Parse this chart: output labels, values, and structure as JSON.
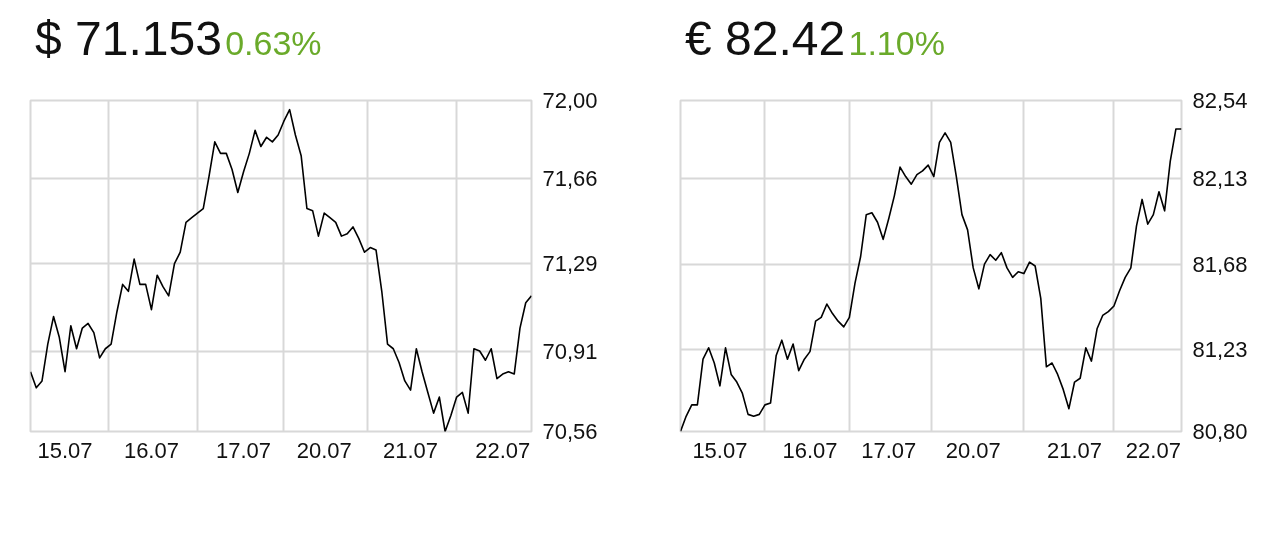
{
  "chart_data": [
    {
      "type": "line",
      "title": "$ 71.153",
      "subtitle": "0.63%",
      "grid": true,
      "marker": "none",
      "categories": [
        null,
        null,
        null,
        null,
        null,
        null,
        "15.07",
        null,
        null,
        null,
        null,
        null,
        null,
        null,
        null,
        null,
        null,
        null,
        null,
        null,
        null,
        "16.07",
        null,
        null,
        null,
        null,
        null,
        null,
        null,
        null,
        null,
        null,
        null,
        null,
        null,
        null,
        null,
        "17.07",
        null,
        null,
        null,
        null,
        null,
        null,
        null,
        null,
        null,
        null,
        null,
        null,
        null,
        "20.07",
        null,
        null,
        null,
        null,
        null,
        null,
        null,
        null,
        null,
        null,
        null,
        null,
        null,
        null,
        "21.07",
        null,
        null,
        null,
        null,
        null,
        null,
        null,
        null,
        null,
        null,
        null,
        null,
        null,
        null,
        null,
        "22.07",
        null,
        null,
        null,
        null,
        null
      ],
      "ylim": [
        70.56,
        72.0
      ],
      "yticks": [
        {
          "value": 70.56,
          "label": "70,56"
        },
        {
          "value": 70.91,
          "label": "70,91"
        },
        {
          "value": 71.29,
          "label": "71,29"
        },
        {
          "value": 71.66,
          "label": "71,66"
        },
        {
          "value": 72.0,
          "label": "72,00"
        }
      ],
      "series": [
        {
          "color": "#000000",
          "values": [
            70.82,
            70.75,
            70.78,
            70.94,
            71.06,
            70.97,
            70.82,
            71.02,
            70.92,
            71.01,
            71.03,
            70.99,
            70.88,
            70.92,
            70.94,
            71.08,
            71.2,
            71.17,
            71.31,
            71.2,
            71.2,
            71.09,
            71.24,
            71.19,
            71.15,
            71.29,
            71.34,
            71.47,
            71.49,
            71.51,
            71.53,
            71.67,
            71.82,
            71.77,
            71.77,
            71.7,
            71.6,
            71.69,
            71.77,
            71.87,
            71.8,
            71.84,
            71.82,
            71.85,
            71.91,
            71.96,
            71.85,
            71.76,
            71.53,
            71.52,
            71.41,
            71.51,
            71.49,
            71.47,
            71.41,
            71.42,
            71.45,
            71.4,
            71.34,
            71.36,
            71.35,
            71.17,
            70.94,
            70.92,
            70.86,
            70.78,
            70.74,
            70.92,
            70.82,
            70.73,
            70.64,
            70.71,
            70.56,
            70.63,
            70.71,
            70.73,
            70.64,
            70.92,
            70.91,
            70.87,
            70.92,
            70.79,
            70.81,
            70.82,
            70.81,
            71.01,
            71.12,
            71.15
          ]
        }
      ]
    },
    {
      "type": "line",
      "title": "€ 82.42",
      "subtitle": "1.10%",
      "grid": true,
      "marker": "none",
      "categories": [
        null,
        null,
        null,
        null,
        null,
        null,
        null,
        "15.07",
        null,
        null,
        null,
        null,
        null,
        null,
        null,
        null,
        null,
        null,
        null,
        null,
        null,
        null,
        null,
        "16.07",
        null,
        null,
        null,
        null,
        null,
        null,
        null,
        null,
        null,
        null,
        null,
        null,
        null,
        "17.07",
        null,
        null,
        null,
        null,
        null,
        null,
        null,
        null,
        null,
        null,
        null,
        null,
        null,
        null,
        "20.07",
        null,
        null,
        null,
        null,
        null,
        null,
        null,
        null,
        null,
        null,
        null,
        null,
        null,
        null,
        null,
        null,
        null,
        "21.07",
        null,
        null,
        null,
        null,
        null,
        null,
        null,
        null,
        null,
        null,
        null,
        null,
        null,
        "22.07",
        null,
        null,
        null,
        null,
        null
      ],
      "ylim": [
        80.8,
        82.54
      ],
      "yticks": [
        {
          "value": 80.8,
          "label": "80,80"
        },
        {
          "value": 81.23,
          "label": "81,23"
        },
        {
          "value": 81.68,
          "label": "81,68"
        },
        {
          "value": 82.13,
          "label": "82,13"
        },
        {
          "value": 82.54,
          "label": "82,54"
        }
      ],
      "series": [
        {
          "color": "#000000",
          "values": [
            80.8,
            80.88,
            80.94,
            80.94,
            81.18,
            81.24,
            81.16,
            81.04,
            81.24,
            81.1,
            81.06,
            81.0,
            80.89,
            80.88,
            80.89,
            80.94,
            80.95,
            81.2,
            81.28,
            81.18,
            81.26,
            81.12,
            81.18,
            81.22,
            81.38,
            81.4,
            81.47,
            81.42,
            81.38,
            81.35,
            81.4,
            81.58,
            81.72,
            81.94,
            81.95,
            81.9,
            81.81,
            81.92,
            82.04,
            82.19,
            82.14,
            82.1,
            82.15,
            82.17,
            82.2,
            82.14,
            82.32,
            82.37,
            82.32,
            82.14,
            81.94,
            81.86,
            81.66,
            81.55,
            81.68,
            81.73,
            81.7,
            81.74,
            81.66,
            81.61,
            81.64,
            81.63,
            81.69,
            81.67,
            81.5,
            81.14,
            81.16,
            81.1,
            81.02,
            80.92,
            81.06,
            81.08,
            81.24,
            81.17,
            81.34,
            81.41,
            81.43,
            81.46,
            81.54,
            81.61,
            81.66,
            81.88,
            82.02,
            81.89,
            81.94,
            82.06,
            81.96,
            82.22,
            82.39,
            82.39
          ]
        }
      ]
    }
  ]
}
